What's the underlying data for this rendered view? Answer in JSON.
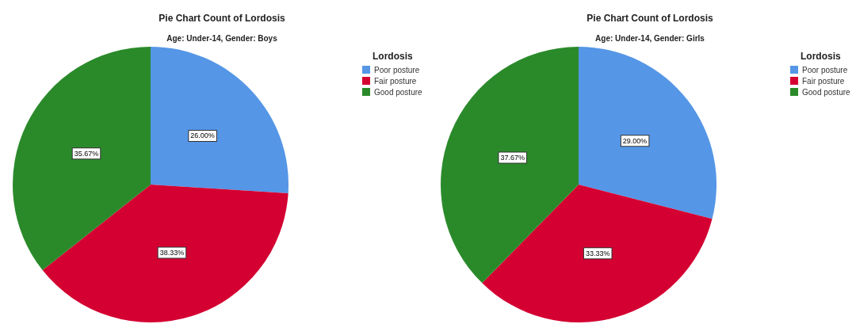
{
  "chart_data": [
    {
      "type": "pie",
      "title": "Pie Chart Count of Lordosis",
      "subtitle": "Age: Under-14, Gender: Boys",
      "legend_title": "Lordosis",
      "legend": "top right",
      "categories": [
        "Poor posture",
        "Fair posture",
        "Good posture"
      ],
      "values": [
        26.0,
        38.33,
        35.67
      ],
      "colors": [
        "#5596e6",
        "#d40032",
        "#2a8a2a"
      ],
      "value_labels": [
        "26.00%",
        "38.33%",
        "35.67%"
      ]
    },
    {
      "type": "pie",
      "title": "Pie Chart Count of Lordosis",
      "subtitle": "Age: Under-14, Gender: Girls",
      "legend_title": "Lordosis",
      "legend": "top right",
      "categories": [
        "Poor posture",
        "Fair posture",
        "Good posture"
      ],
      "values": [
        29.0,
        33.33,
        37.67
      ],
      "colors": [
        "#5596e6",
        "#d40032",
        "#2a8a2a"
      ],
      "value_labels": [
        "29.00%",
        "33.33%",
        "37.67%"
      ]
    }
  ]
}
